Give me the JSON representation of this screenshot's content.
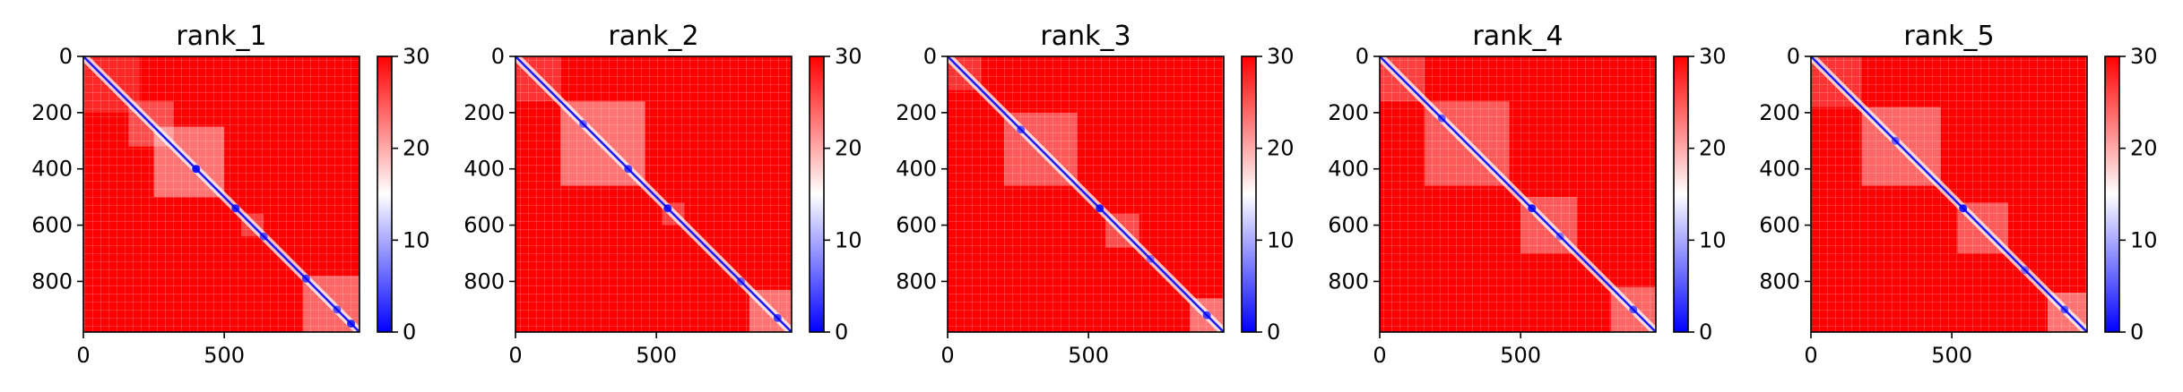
{
  "figure": {
    "kind": "PAE heatmap grid",
    "count": 5
  },
  "chart_data": [
    {
      "type": "heatmap",
      "title": "rank_1",
      "xlabel": "",
      "ylabel": "",
      "xlim": [
        0,
        980
      ],
      "ylim": [
        980,
        0
      ],
      "x_ticks": [
        0,
        500
      ],
      "y_ticks": [
        0,
        200,
        400,
        600,
        800
      ],
      "colorbar": {
        "range": [
          0,
          30
        ],
        "ticks": [
          0,
          10,
          20,
          30
        ],
        "colormap": "bwr",
        "colors": [
          "#0000ff",
          "#ffffff",
          "#ff0000"
        ]
      },
      "low_blocks": [
        [
          250,
          500,
          0.45
        ],
        [
          160,
          320,
          0.3
        ],
        [
          560,
          640,
          0.25
        ],
        [
          780,
          980,
          0.4
        ],
        [
          0,
          200,
          0.15
        ]
      ],
      "spots": [
        [
          400,
          0.9
        ],
        [
          540,
          0.8
        ],
        [
          640,
          0.6
        ],
        [
          790,
          0.7
        ],
        [
          900,
          0.6
        ],
        [
          950,
          0.8
        ]
      ]
    },
    {
      "type": "heatmap",
      "title": "rank_2",
      "xlabel": "",
      "ylabel": "",
      "xlim": [
        0,
        980
      ],
      "ylim": [
        980,
        0
      ],
      "x_ticks": [
        0,
        500
      ],
      "y_ticks": [
        0,
        200,
        400,
        600,
        800
      ],
      "colorbar": {
        "range": [
          0,
          30
        ],
        "ticks": [
          0,
          10,
          20,
          30
        ],
        "colormap": "bwr",
        "colors": [
          "#0000ff",
          "#ffffff",
          "#ff0000"
        ]
      },
      "low_blocks": [
        [
          160,
          460,
          0.45
        ],
        [
          0,
          160,
          0.2
        ],
        [
          520,
          600,
          0.25
        ],
        [
          830,
          980,
          0.45
        ]
      ],
      "spots": [
        [
          240,
          0.5
        ],
        [
          400,
          0.7
        ],
        [
          540,
          0.85
        ],
        [
          800,
          0.5
        ],
        [
          930,
          0.7
        ]
      ]
    },
    {
      "type": "heatmap",
      "title": "rank_3",
      "xlabel": "",
      "ylabel": "",
      "xlim": [
        0,
        980
      ],
      "ylim": [
        980,
        0
      ],
      "x_ticks": [
        0,
        500
      ],
      "y_ticks": [
        0,
        200,
        400,
        600,
        800
      ],
      "colorbar": {
        "range": [
          0,
          30
        ],
        "ticks": [
          0,
          10,
          20,
          30
        ],
        "colormap": "bwr",
        "colors": [
          "#0000ff",
          "#ffffff",
          "#ff0000"
        ]
      },
      "low_blocks": [
        [
          200,
          460,
          0.35
        ],
        [
          0,
          120,
          0.2
        ],
        [
          560,
          680,
          0.3
        ],
        [
          860,
          980,
          0.45
        ]
      ],
      "spots": [
        [
          260,
          0.6
        ],
        [
          540,
          0.85
        ],
        [
          720,
          0.4
        ],
        [
          920,
          0.7
        ]
      ]
    },
    {
      "type": "heatmap",
      "title": "rank_4",
      "xlabel": "",
      "ylabel": "",
      "xlim": [
        0,
        980
      ],
      "ylim": [
        980,
        0
      ],
      "x_ticks": [
        0,
        500
      ],
      "y_ticks": [
        0,
        200,
        400,
        600,
        800
      ],
      "colorbar": {
        "range": [
          0,
          30
        ],
        "ticks": [
          0,
          10,
          20,
          30
        ],
        "colormap": "bwr",
        "colors": [
          "#0000ff",
          "#ffffff",
          "#ff0000"
        ]
      },
      "low_blocks": [
        [
          160,
          460,
          0.35
        ],
        [
          0,
          160,
          0.25
        ],
        [
          500,
          700,
          0.35
        ],
        [
          820,
          980,
          0.4
        ]
      ],
      "spots": [
        [
          220,
          0.55
        ],
        [
          540,
          0.85
        ],
        [
          640,
          0.45
        ],
        [
          900,
          0.6
        ]
      ]
    },
    {
      "type": "heatmap",
      "title": "rank_5",
      "xlabel": "",
      "ylabel": "",
      "xlim": [
        0,
        980
      ],
      "ylim": [
        980,
        0
      ],
      "x_ticks": [
        0,
        500
      ],
      "y_ticks": [
        0,
        200,
        400,
        600,
        800
      ],
      "colorbar": {
        "range": [
          0,
          30
        ],
        "ticks": [
          0,
          10,
          20,
          30
        ],
        "colormap": "bwr",
        "colors": [
          "#0000ff",
          "#ffffff",
          "#ff0000"
        ]
      },
      "low_blocks": [
        [
          180,
          460,
          0.4
        ],
        [
          0,
          180,
          0.2
        ],
        [
          520,
          700,
          0.35
        ],
        [
          840,
          980,
          0.45
        ]
      ],
      "spots": [
        [
          300,
          0.55
        ],
        [
          540,
          0.85
        ],
        [
          760,
          0.45
        ],
        [
          900,
          0.6
        ]
      ]
    }
  ]
}
